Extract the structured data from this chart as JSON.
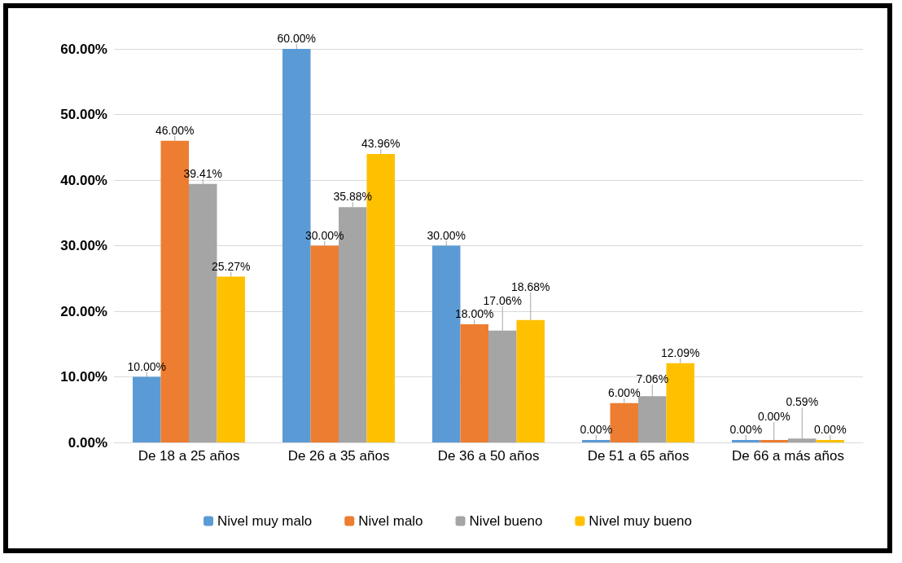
{
  "chart_data": {
    "type": "bar",
    "categories": [
      "De 18 a 25 años",
      "De 26 a 35 años",
      "De 36 a 50 años",
      "De 51 a 65 años",
      "De 66 a más años"
    ],
    "series": [
      {
        "name": "Nivel muy malo",
        "color": "#5b9bd5",
        "values": [
          10,
          60,
          30,
          0,
          0
        ],
        "value_labels": [
          "10.00%",
          "60.00%",
          "30.00%",
          "0.00%",
          "0.00%"
        ]
      },
      {
        "name": "Nivel malo",
        "color": "#ed7d31",
        "values": [
          46,
          30,
          18,
          6,
          0
        ],
        "value_labels": [
          "46.00%",
          "30.00%",
          "18.00%",
          "6.00%",
          "0.00%"
        ]
      },
      {
        "name": "Nivel bueno",
        "color": "#a5a5a5",
        "values": [
          39.41,
          35.88,
          17.06,
          7.06,
          0.59
        ],
        "value_labels": [
          "39.41%",
          "35.88%",
          "17.06%",
          "7.06%",
          "0.59%"
        ]
      },
      {
        "name": "Nivel muy bueno",
        "color": "#ffc000",
        "values": [
          25.27,
          43.96,
          18.68,
          12.09,
          0
        ],
        "value_labels": [
          "25.27%",
          "43.96%",
          "18.68%",
          "12.09%",
          "0.00%"
        ]
      }
    ],
    "ylim": [
      0,
      60
    ],
    "yticks": [
      {
        "value": 0,
        "label": "0.00%"
      },
      {
        "value": 10,
        "label": "10.00%"
      },
      {
        "value": 20,
        "label": "20.00%"
      },
      {
        "value": 30,
        "label": "30.00%"
      },
      {
        "value": 40,
        "label": "40.00%"
      },
      {
        "value": 50,
        "label": "50.00%"
      },
      {
        "value": 60,
        "label": "60.00%"
      }
    ],
    "grid": "y",
    "legend": "bottom"
  }
}
